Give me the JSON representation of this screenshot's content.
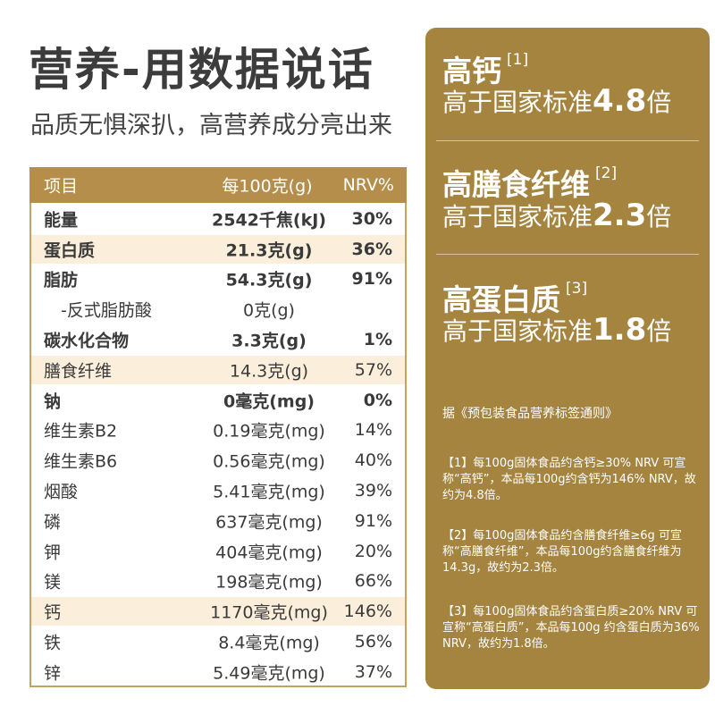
{
  "header": {
    "title": "营养-用数据说话",
    "subtitle": "品质无惧深扒，高营养成分亮出来"
  },
  "table": {
    "headers": [
      "项目",
      "每100克(g)",
      "NRV%"
    ],
    "rows": [
      {
        "name": "能量",
        "value": "2542千焦(kJ)",
        "nrv": "30%",
        "bold": true,
        "highlight": false
      },
      {
        "name": "蛋白质",
        "value": "21.3克(g)",
        "nrv": "36%",
        "bold": true,
        "highlight": true
      },
      {
        "name": "脂肪",
        "value": "54.3克(g)",
        "nrv": "91%",
        "bold": true,
        "highlight": false
      },
      {
        "name": "-反式脂肪酸",
        "value": "0克(g)",
        "nrv": "",
        "bold": false,
        "highlight": false
      },
      {
        "name": "碳水化合物",
        "value": "3.3克(g)",
        "nrv": "1%",
        "bold": true,
        "highlight": false
      },
      {
        "name": "膳食纤维",
        "value": "14.3克(g)",
        "nrv": "57%",
        "bold": false,
        "highlight": true
      },
      {
        "name": "钠",
        "value": "0毫克(mg)",
        "nrv": "0%",
        "bold": true,
        "highlight": false
      },
      {
        "name": "维生素B2",
        "value": "0.19毫克(mg)",
        "nrv": "14%",
        "bold": false,
        "highlight": false
      },
      {
        "name": "维生素B6",
        "value": "0.56毫克(mg)",
        "nrv": "40%",
        "bold": false,
        "highlight": false
      },
      {
        "name": "烟酸",
        "value": "5.41毫克(mg)",
        "nrv": "39%",
        "bold": false,
        "highlight": false
      },
      {
        "name": "磷",
        "value": "637毫克(mg)",
        "nrv": "91%",
        "bold": false,
        "highlight": false
      },
      {
        "name": "钾",
        "value": "404毫克(mg)",
        "nrv": "20%",
        "bold": false,
        "highlight": false
      },
      {
        "name": "镁",
        "value": "198毫克(mg)",
        "nrv": "66%",
        "bold": false,
        "highlight": false
      },
      {
        "name": "钙",
        "value": "1170毫克(mg)",
        "nrv": "146%",
        "bold": false,
        "highlight": true
      },
      {
        "name": "铁",
        "value": "8.4毫克(mg)",
        "nrv": "56%",
        "bold": false,
        "highlight": false
      },
      {
        "name": "锌",
        "value": "5.49毫克(mg)",
        "nrv": "37%",
        "bold": false,
        "highlight": false
      }
    ]
  },
  "panel": {
    "claims": [
      {
        "title": "高钙",
        "ref": "[1]",
        "prefix": "高于国家标准",
        "multiple": "4.8",
        "suffix": "倍"
      },
      {
        "title": "高膳食纤维",
        "ref": "[2]",
        "prefix": "高于国家标准",
        "multiple": "2.3",
        "suffix": "倍"
      },
      {
        "title": "高蛋白质",
        "ref": "[3]",
        "prefix": "高于国家标准",
        "multiple": "1.8",
        "suffix": "倍"
      }
    ],
    "basis": "据《预包装食品营养标签通则》",
    "notes": [
      "【1】每100g固体食品约含钙≥30% NRV 可宣称“高钙”，本品每100g约含钙为146% NRV，故约为4.8倍。",
      "【2】每100g固体食品约含膳食纤维≥6g 可宣称“高膳食纤维”，本品每100g约含膳食纤维为14.3g，故约为2.3倍。",
      "【3】每100g固体食品约含蛋白质≥20% NRV 可宣称“高蛋白质”，本品每100g 约含蛋白质为36% NRV，故约为1.8倍。"
    ]
  },
  "colors": {
    "gold": "#a5843f",
    "header_gold": "#b48e4a",
    "highlight_row": "#fbeedb",
    "text": "#3a3a3a"
  }
}
